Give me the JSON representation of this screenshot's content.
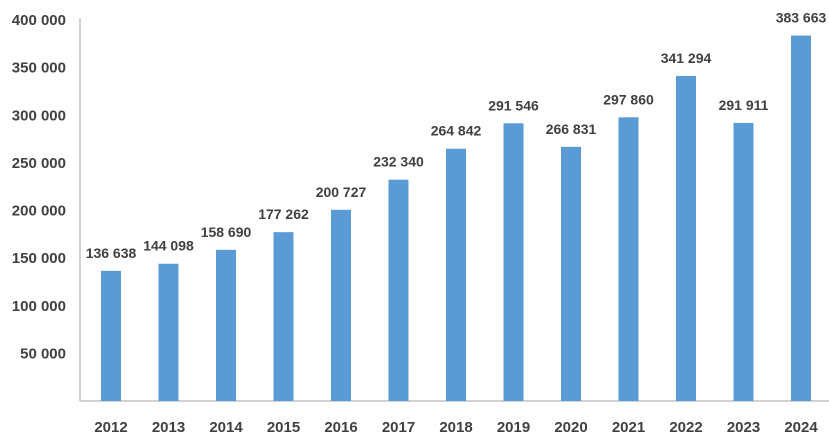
{
  "chart_data": {
    "type": "bar",
    "categories": [
      "2012",
      "2013",
      "2014",
      "2015",
      "2016",
      "2017",
      "2018",
      "2019",
      "2020",
      "2021",
      "2022",
      "2023",
      "2024"
    ],
    "values": [
      136638,
      144098,
      158690,
      177262,
      200727,
      232340,
      264842,
      291546,
      266831,
      297860,
      341294,
      291911,
      383663
    ],
    "value_labels": [
      "136 638",
      "144 098",
      "158 690",
      "177 262",
      "200 727",
      "232 340",
      "264 842",
      "291 546",
      "266 831",
      "297 860",
      "341 294",
      "291 911",
      "383 663"
    ],
    "y_ticks": [
      50000,
      100000,
      150000,
      200000,
      250000,
      300000,
      350000,
      400000
    ],
    "y_tick_labels": [
      "50 000",
      "100 000",
      "150 000",
      "200 000",
      "250 000",
      "300 000",
      "350 000",
      "400 000"
    ],
    "ylim": [
      0,
      400000
    ],
    "title": "",
    "xlabel": "",
    "ylabel": "",
    "grid": false,
    "legend": "none",
    "colors": {
      "bar": "#5b9bd5",
      "text": "#404040",
      "axis": "#a6a6a6"
    }
  }
}
